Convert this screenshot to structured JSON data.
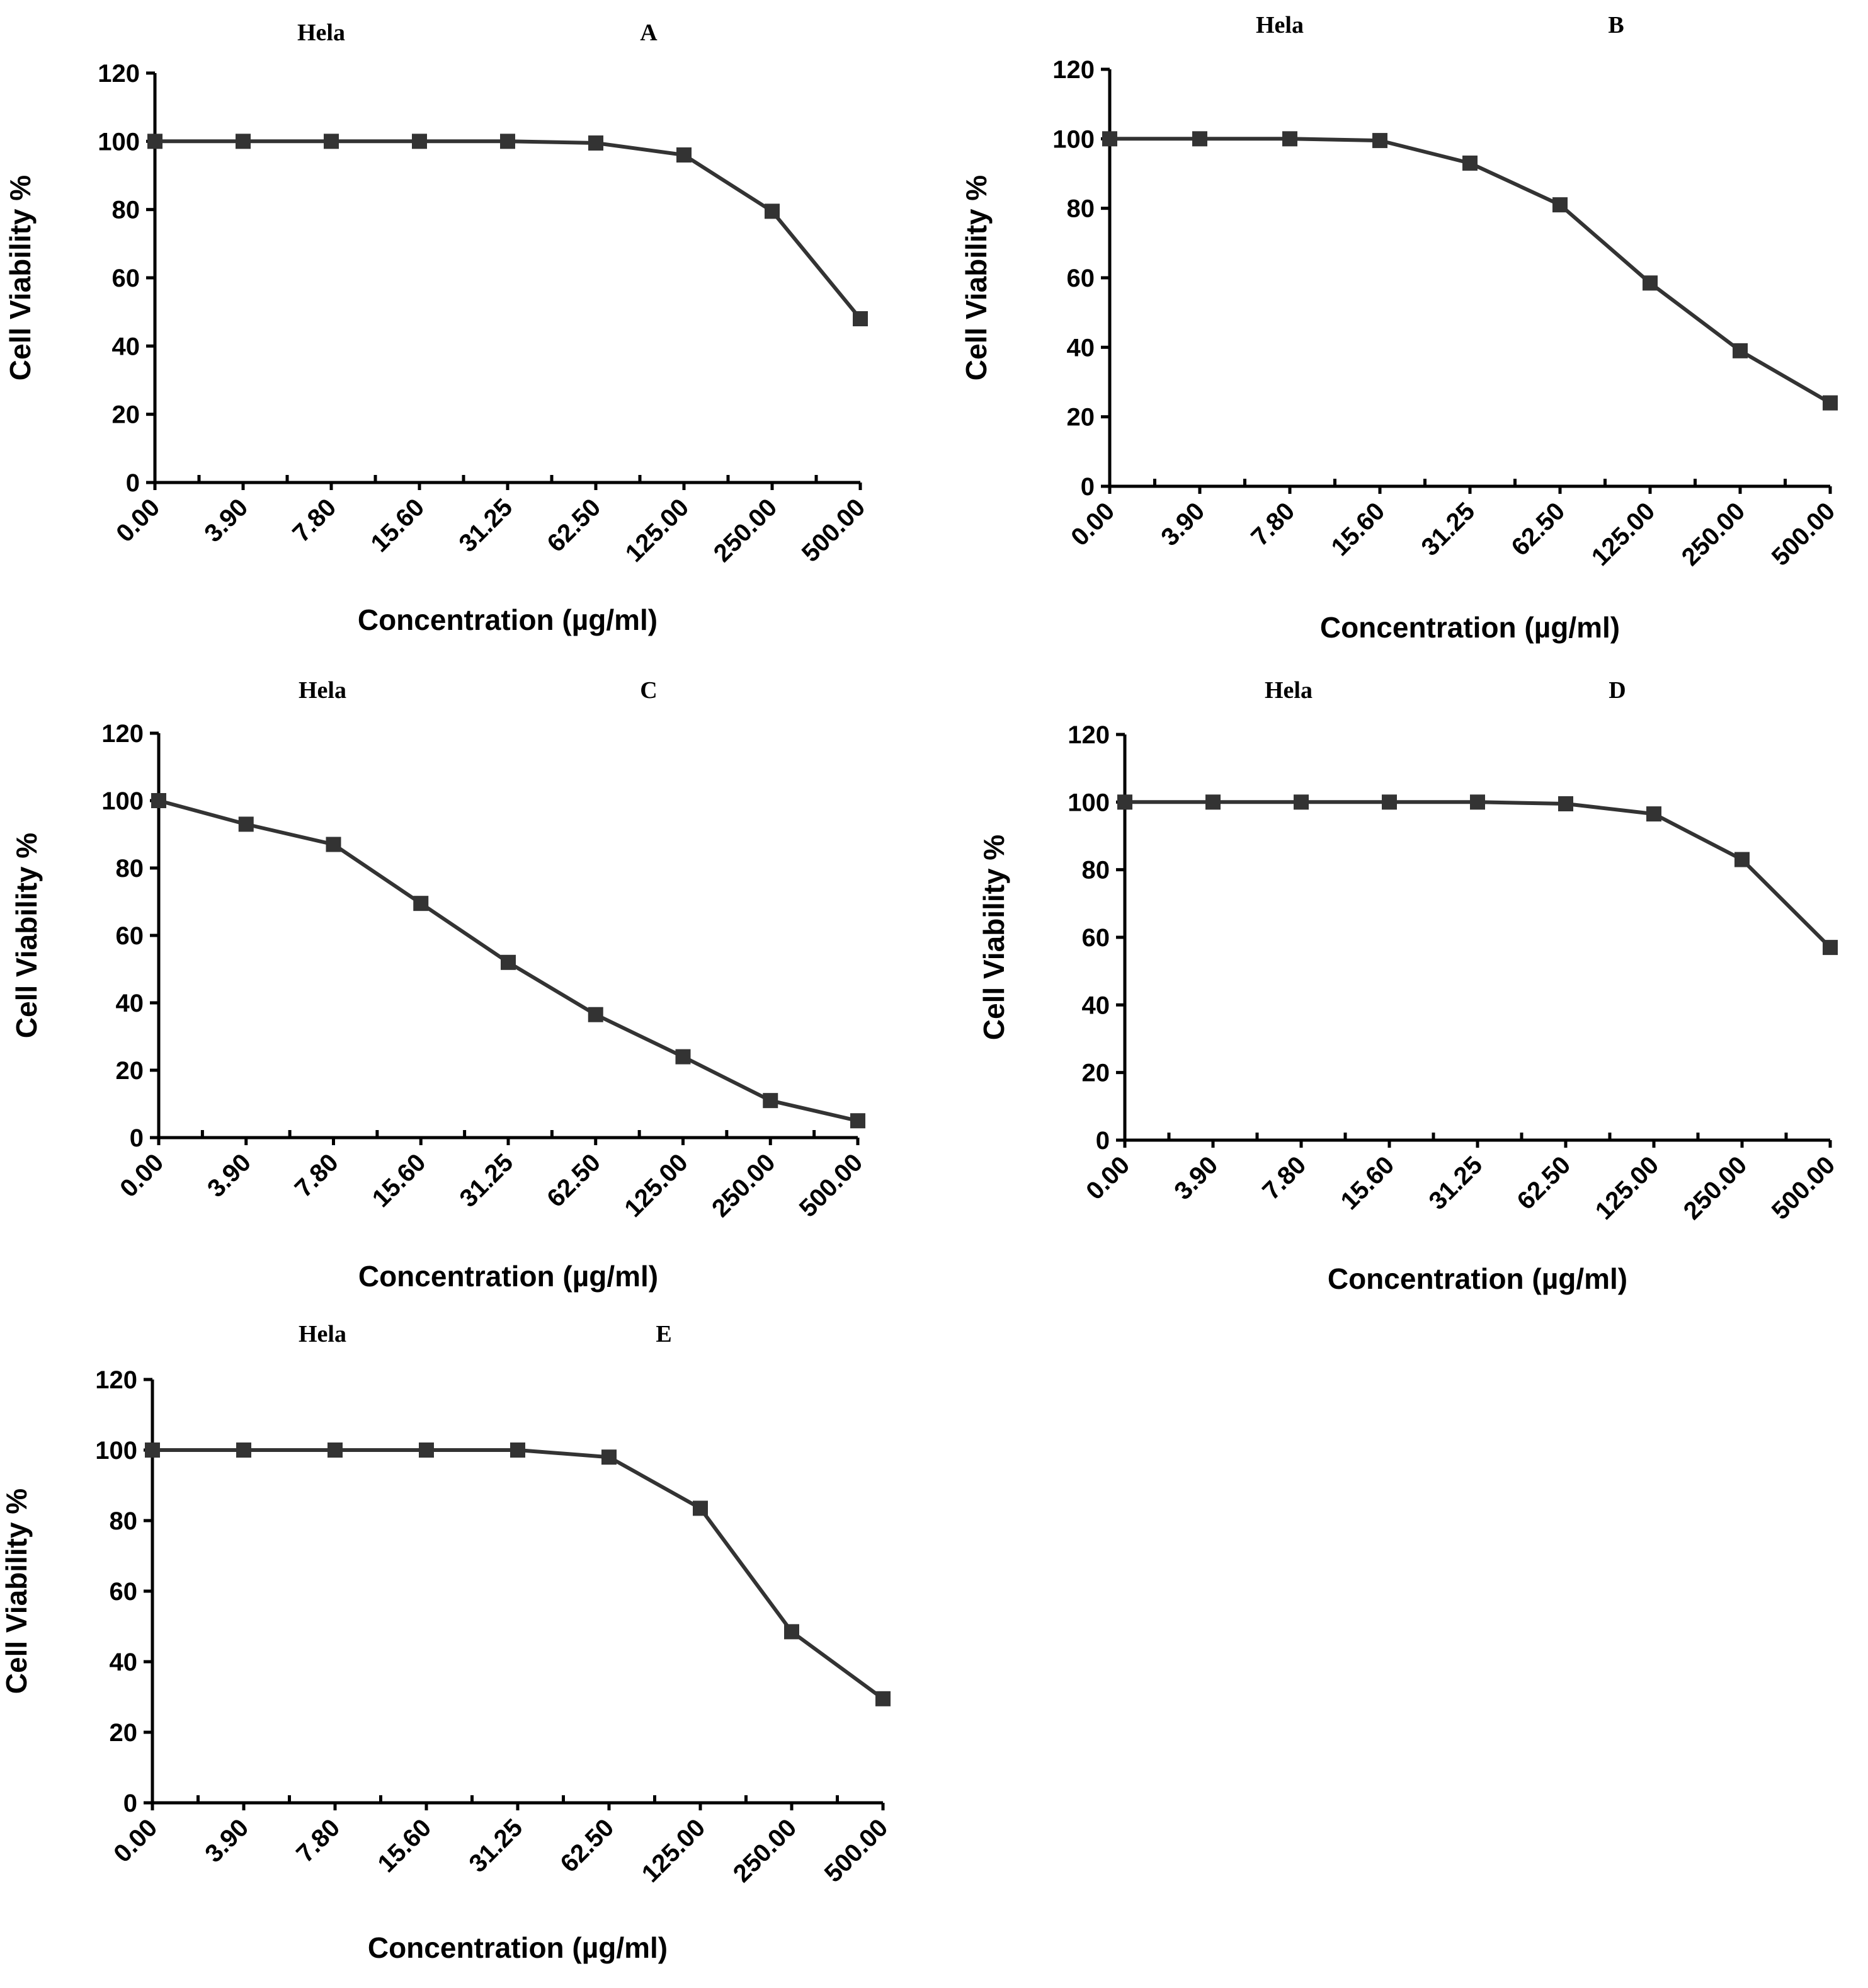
{
  "chart_data": [
    {
      "id": "A",
      "type": "line",
      "title": "Hela",
      "panel_label": "A",
      "xlabel": "Concentration (µg/ml)",
      "ylabel": "Cell Viability %",
      "ylim": [
        0,
        120
      ],
      "yticks": [
        "0",
        "20",
        "40",
        "60",
        "80",
        "100",
        "120"
      ],
      "categories": [
        "0.00",
        "3.90",
        "7.80",
        "15.60",
        "31.25",
        "62.50",
        "125.00",
        "250.00",
        "500.00"
      ],
      "values": [
        100,
        100,
        100,
        100,
        100,
        99.5,
        96,
        79.5,
        48
      ]
    },
    {
      "id": "B",
      "type": "line",
      "title": "Hela",
      "panel_label": "B",
      "xlabel": "Concentration (µg/ml)",
      "ylabel": "Cell Viability %",
      "ylim": [
        0,
        120
      ],
      "yticks": [
        "0",
        "20",
        "40",
        "60",
        "80",
        "100",
        "120"
      ],
      "categories": [
        "0.00",
        "3.90",
        "7.80",
        "15.60",
        "31.25",
        "62.50",
        "125.00",
        "250.00",
        "500.00"
      ],
      "values": [
        100,
        100,
        100,
        99.5,
        93,
        81,
        58.5,
        39,
        24
      ]
    },
    {
      "id": "C",
      "type": "line",
      "title": "Hela",
      "panel_label": "C",
      "xlabel": "Concentration (µg/ml)",
      "ylabel": "Cell Viability %",
      "ylim": [
        0,
        120
      ],
      "yticks": [
        "0",
        "20",
        "40",
        "60",
        "80",
        "100",
        "120"
      ],
      "categories": [
        "0.00",
        "3.90",
        "7.80",
        "15.60",
        "31.25",
        "62.50",
        "125.00",
        "250.00",
        "500.00"
      ],
      "values": [
        100,
        93,
        87,
        69.5,
        52,
        36.5,
        24,
        11,
        5
      ]
    },
    {
      "id": "D",
      "type": "line",
      "title": "Hela",
      "panel_label": "D",
      "xlabel": "Concentration (µg/ml)",
      "ylabel": "Cell Viability %",
      "ylim": [
        0,
        120
      ],
      "yticks": [
        "0",
        "20",
        "40",
        "60",
        "80",
        "100",
        "120"
      ],
      "categories": [
        "0.00",
        "3.90",
        "7.80",
        "15.60",
        "31.25",
        "62.50",
        "125.00",
        "250.00",
        "500.00"
      ],
      "values": [
        100,
        100,
        100,
        100,
        100,
        99.5,
        96.5,
        83,
        57
      ]
    },
    {
      "id": "E",
      "type": "line",
      "title": "Hela",
      "panel_label": "E",
      "xlabel": "Concentration (µg/ml)",
      "ylabel": "Cell Viability %",
      "ylim": [
        0,
        120
      ],
      "yticks": [
        "0",
        "20",
        "40",
        "60",
        "80",
        "100",
        "120"
      ],
      "categories": [
        "0.00",
        "3.90",
        "7.80",
        "15.60",
        "31.25",
        "62.50",
        "125.00",
        "250.00",
        "500.00"
      ],
      "values": [
        100,
        100,
        100,
        100,
        100,
        98,
        83.5,
        48.5,
        29.5
      ]
    }
  ],
  "colors": {
    "series": "#333333",
    "axis": "#000000",
    "background": "#ffffff"
  }
}
